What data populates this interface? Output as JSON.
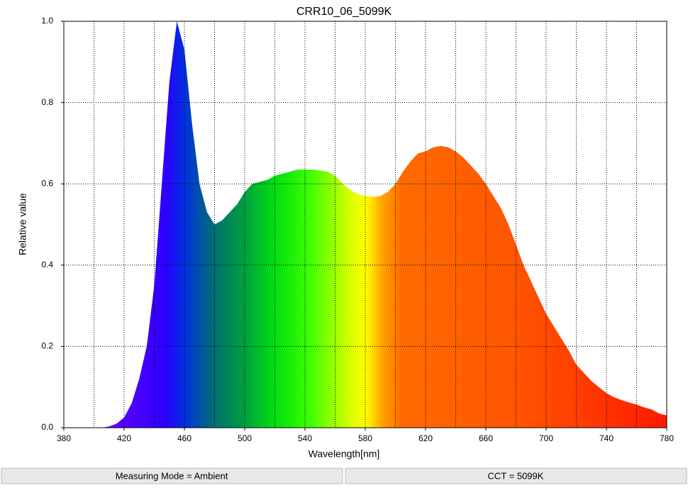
{
  "chart_data": {
    "type": "area",
    "title": "CRR10_06_5099K",
    "x_label": "Wavelength[nm]",
    "y_label": "Relative value",
    "x": [
      380,
      385,
      390,
      395,
      400,
      405,
      410,
      415,
      420,
      425,
      430,
      435,
      440,
      445,
      450,
      455,
      460,
      465,
      470,
      475,
      480,
      485,
      490,
      495,
      500,
      505,
      510,
      515,
      520,
      525,
      530,
      535,
      540,
      545,
      550,
      555,
      560,
      565,
      570,
      575,
      580,
      585,
      590,
      595,
      600,
      605,
      610,
      615,
      620,
      625,
      630,
      635,
      640,
      645,
      650,
      655,
      660,
      665,
      670,
      675,
      680,
      685,
      690,
      695,
      700,
      705,
      710,
      715,
      720,
      725,
      730,
      735,
      740,
      745,
      750,
      755,
      760,
      765,
      770,
      775,
      780
    ],
    "values": [
      0,
      0,
      0,
      0,
      0,
      0,
      0.003,
      0.01,
      0.025,
      0.06,
      0.12,
      0.2,
      0.35,
      0.6,
      0.85,
      1.0,
      0.93,
      0.75,
      0.6,
      0.53,
      0.5,
      0.51,
      0.53,
      0.55,
      0.58,
      0.6,
      0.605,
      0.61,
      0.62,
      0.625,
      0.63,
      0.635,
      0.635,
      0.635,
      0.633,
      0.63,
      0.62,
      0.6,
      0.585,
      0.575,
      0.57,
      0.568,
      0.57,
      0.58,
      0.6,
      0.63,
      0.655,
      0.675,
      0.68,
      0.69,
      0.693,
      0.69,
      0.68,
      0.665,
      0.645,
      0.625,
      0.6,
      0.57,
      0.54,
      0.5,
      0.45,
      0.4,
      0.36,
      0.32,
      0.28,
      0.25,
      0.22,
      0.19,
      0.155,
      0.135,
      0.115,
      0.1,
      0.085,
      0.075,
      0.068,
      0.062,
      0.057,
      0.05,
      0.045,
      0.035,
      0.03
    ],
    "xlim": [
      380,
      780
    ],
    "ylim": [
      0,
      1
    ],
    "xticks": [
      380,
      420,
      460,
      500,
      540,
      580,
      620,
      660,
      700,
      740,
      780
    ],
    "xminorticks": [
      400,
      420,
      440,
      460,
      480,
      500,
      520,
      540,
      560,
      580,
      600,
      620,
      640,
      660,
      680,
      700,
      720,
      740,
      760
    ],
    "yticks": [
      {
        "value": 0,
        "label": "0.0"
      },
      0.2,
      0.4,
      0.6,
      0.8,
      {
        "value": 1,
        "label": "1.0"
      }
    ],
    "grid": true
  },
  "status_bar": [
    "Measuring Mode = Ambient",
    "CCT = 5099K"
  ]
}
